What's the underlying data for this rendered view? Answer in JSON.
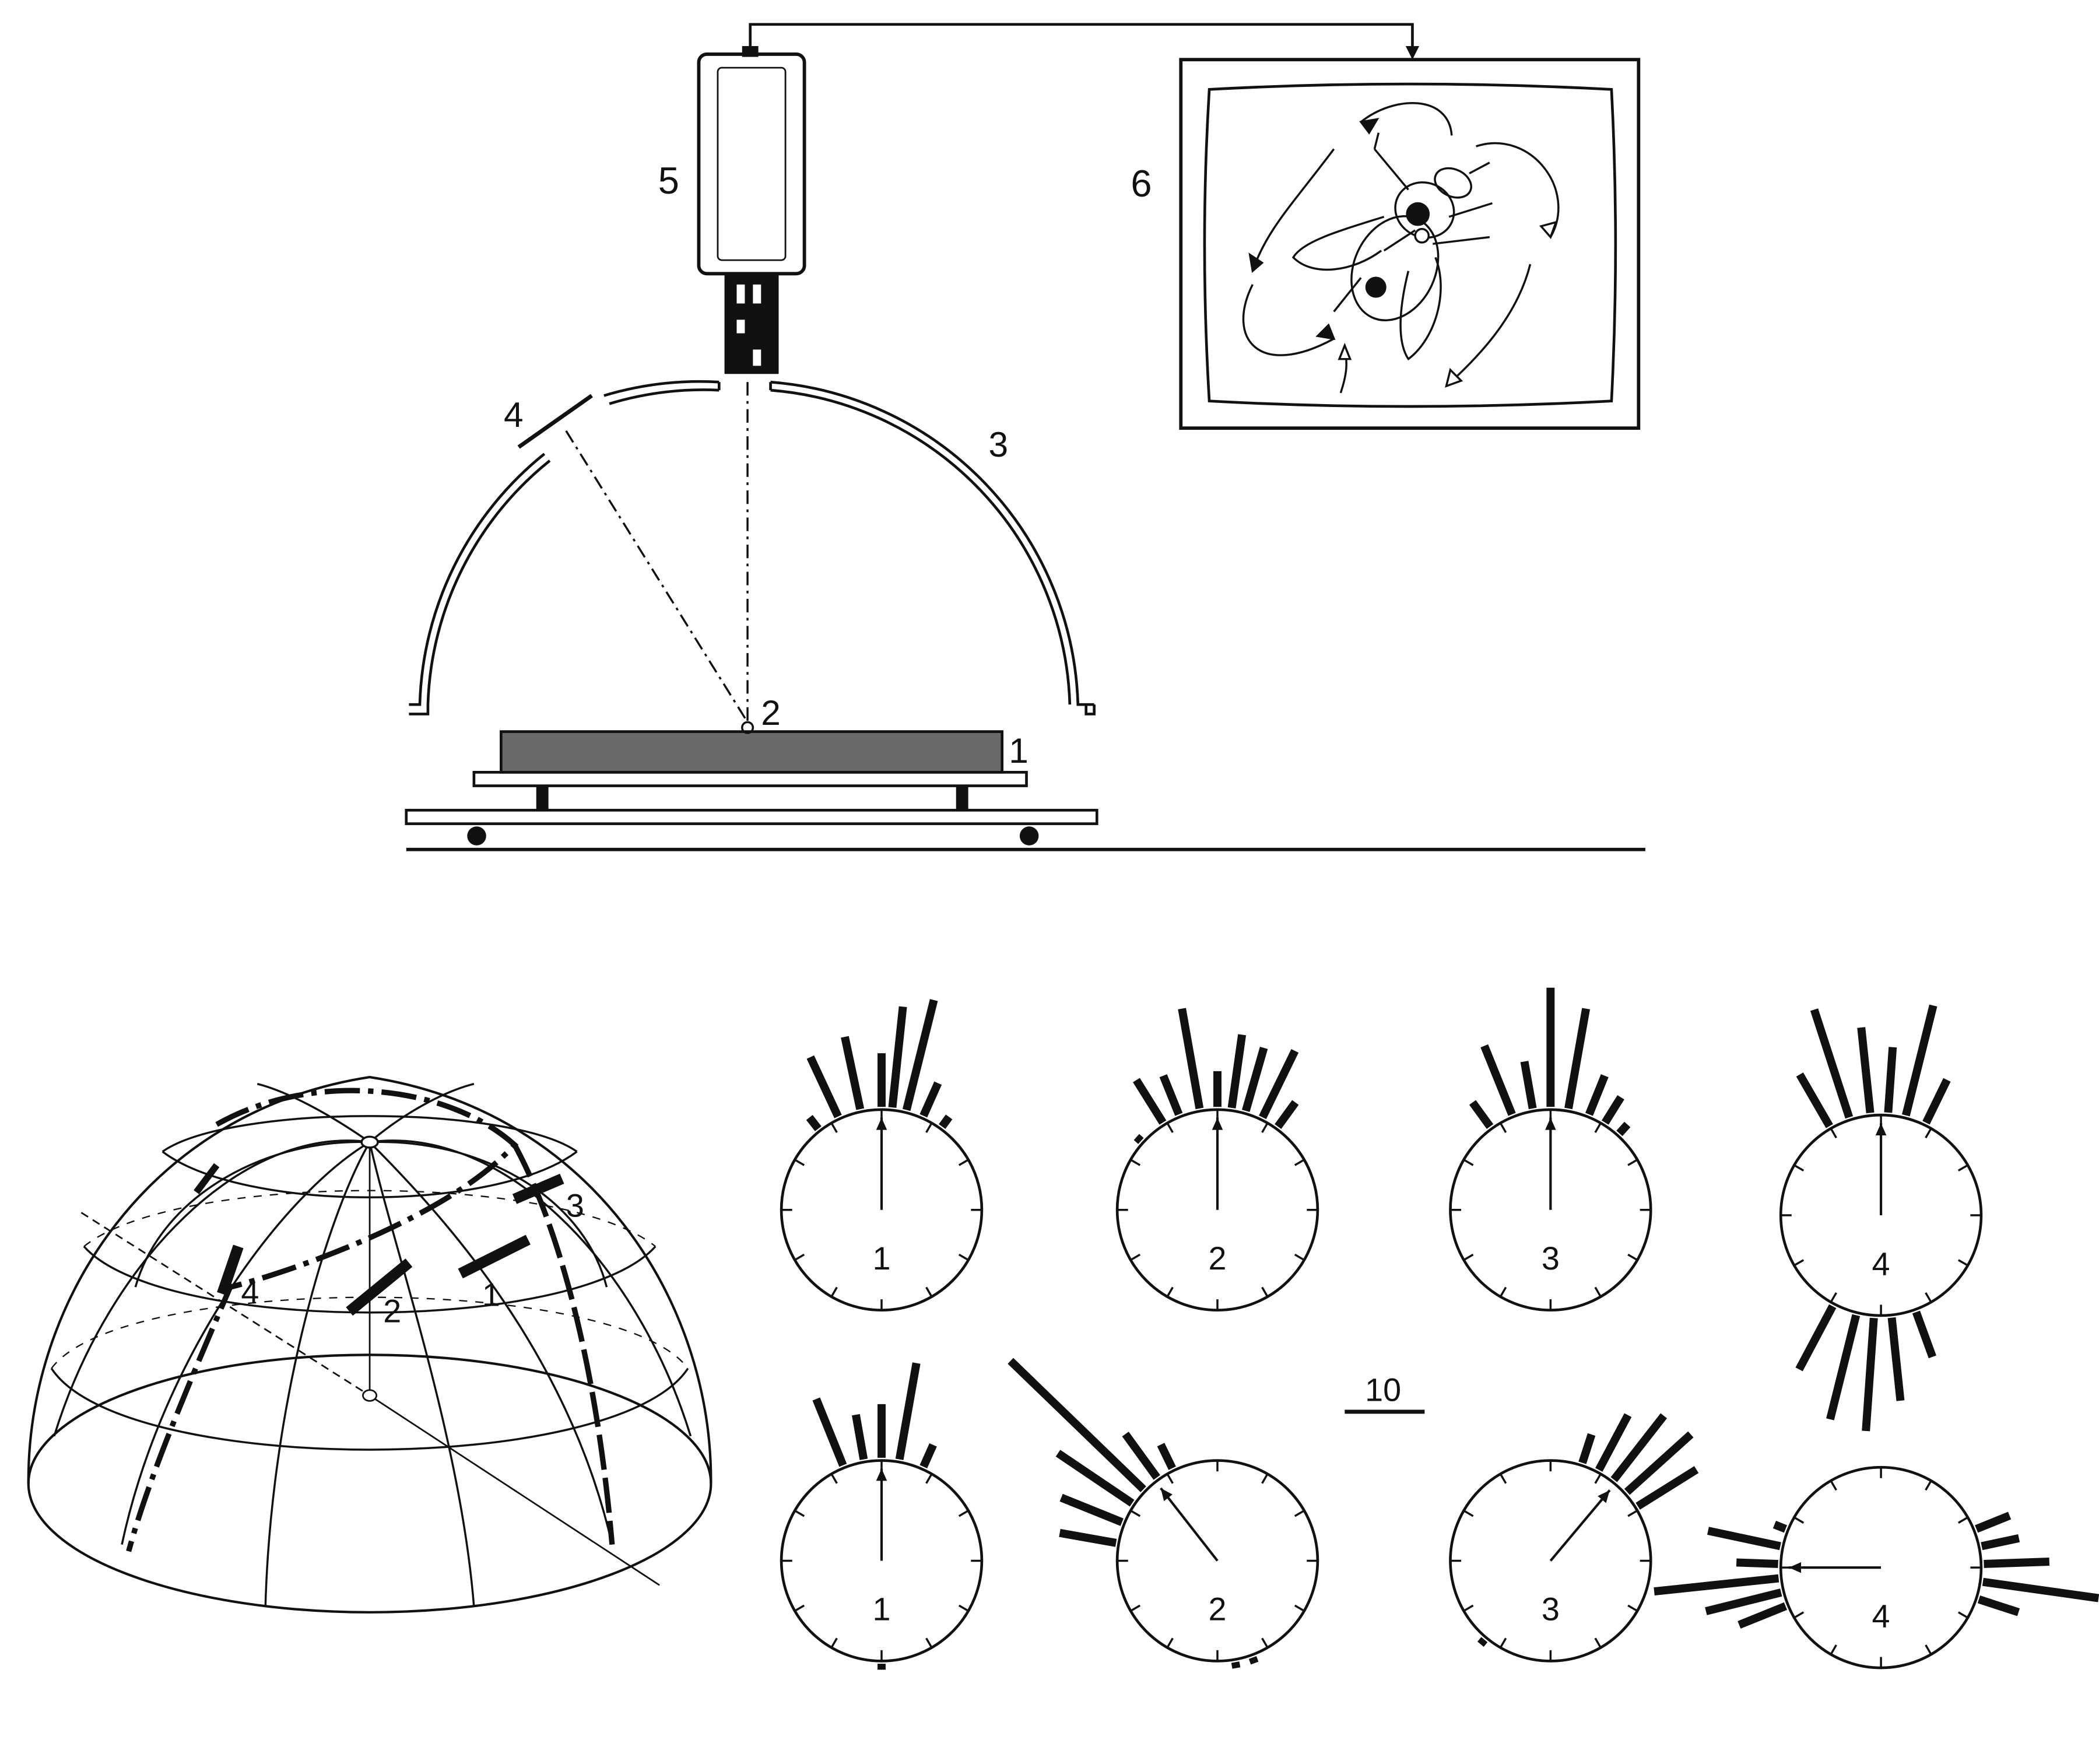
{
  "colors": {
    "ink": "#111111",
    "paper": "#ffffff",
    "platform_fill": "#6a6a6a"
  },
  "apparatus": {
    "labels": {
      "platform": "1",
      "fly_position": "2",
      "dome": "3",
      "light_source": "4",
      "camera": "5",
      "monitor": "6"
    }
  },
  "dome_projection": {
    "labels": [
      "1",
      "2",
      "3",
      "4"
    ]
  },
  "scale_bar": {
    "label": "10"
  },
  "circular_histograms": {
    "top_row": [
      {
        "label": "1",
        "mean_heading_deg": 0,
        "bars": [
          [
            -38,
            0.12
          ],
          [
            -25,
            0.55
          ],
          [
            -12,
            0.62
          ],
          [
            0,
            0.45
          ],
          [
            6,
            0.85
          ],
          [
            14,
            0.95
          ],
          [
            24,
            0.3
          ],
          [
            36,
            0.1
          ]
        ]
      },
      {
        "label": "2",
        "mean_heading_deg": 0,
        "bars": [
          [
            -48,
            0.05
          ],
          [
            -32,
            0.42
          ],
          [
            -22,
            0.35
          ],
          [
            -10,
            0.85
          ],
          [
            0,
            0.3
          ],
          [
            8,
            0.62
          ],
          [
            16,
            0.55
          ],
          [
            26,
            0.62
          ],
          [
            36,
            0.25
          ]
        ]
      },
      {
        "label": "3",
        "mean_heading_deg": 0,
        "bars": [
          [
            -36,
            0.25
          ],
          [
            -22,
            0.62
          ],
          [
            -10,
            0.4
          ],
          [
            0,
            1.0
          ],
          [
            10,
            0.85
          ],
          [
            22,
            0.35
          ],
          [
            32,
            0.25
          ],
          [
            42,
            0.1
          ]
        ]
      },
      {
        "label": "4",
        "mean_heading_deg": 0,
        "bars": [
          [
            -30,
            0.5
          ],
          [
            -18,
            0.95
          ],
          [
            -6,
            0.72
          ],
          [
            4,
            0.55
          ],
          [
            14,
            0.95
          ],
          [
            26,
            0.4
          ],
          [
            174,
            0.7
          ],
          [
            184,
            0.95
          ],
          [
            194,
            0.9
          ],
          [
            208,
            0.6
          ],
          [
            160,
            0.4
          ]
        ]
      }
    ],
    "bottom_row": [
      {
        "label": "1",
        "mean_heading_deg": 0,
        "bars": [
          [
            -22,
            0.6
          ],
          [
            -10,
            0.38
          ],
          [
            0,
            0.45
          ],
          [
            10,
            0.82
          ],
          [
            24,
            0.2
          ],
          [
            180,
            0.05
          ]
        ]
      },
      {
        "label": "2",
        "mean_heading_deg": -38,
        "bars": [
          [
            -80,
            0.48
          ],
          [
            -68,
            0.55
          ],
          [
            -56,
            0.75
          ],
          [
            -46,
            1.55
          ],
          [
            -36,
            0.45
          ],
          [
            -26,
            0.22
          ],
          [
            160,
            0.05
          ],
          [
            170,
            0.05
          ]
        ]
      },
      {
        "label": "3",
        "mean_heading_deg": 40,
        "bars": [
          [
            18,
            0.25
          ],
          [
            28,
            0.52
          ],
          [
            38,
            0.68
          ],
          [
            48,
            0.72
          ],
          [
            58,
            0.58
          ],
          [
            220,
            0.05
          ]
        ]
      },
      {
        "label": "4",
        "mean_heading_deg": -90,
        "bars": [
          [
            -112,
            0.42
          ],
          [
            -104,
            0.65
          ],
          [
            -96,
            1.05
          ],
          [
            -88,
            0.35
          ],
          [
            -78,
            0.62
          ],
          [
            -68,
            0.1
          ],
          [
            68,
            0.3
          ],
          [
            78,
            0.32
          ],
          [
            88,
            0.55
          ],
          [
            98,
            0.98
          ],
          [
            108,
            0.35
          ]
        ]
      }
    ]
  }
}
